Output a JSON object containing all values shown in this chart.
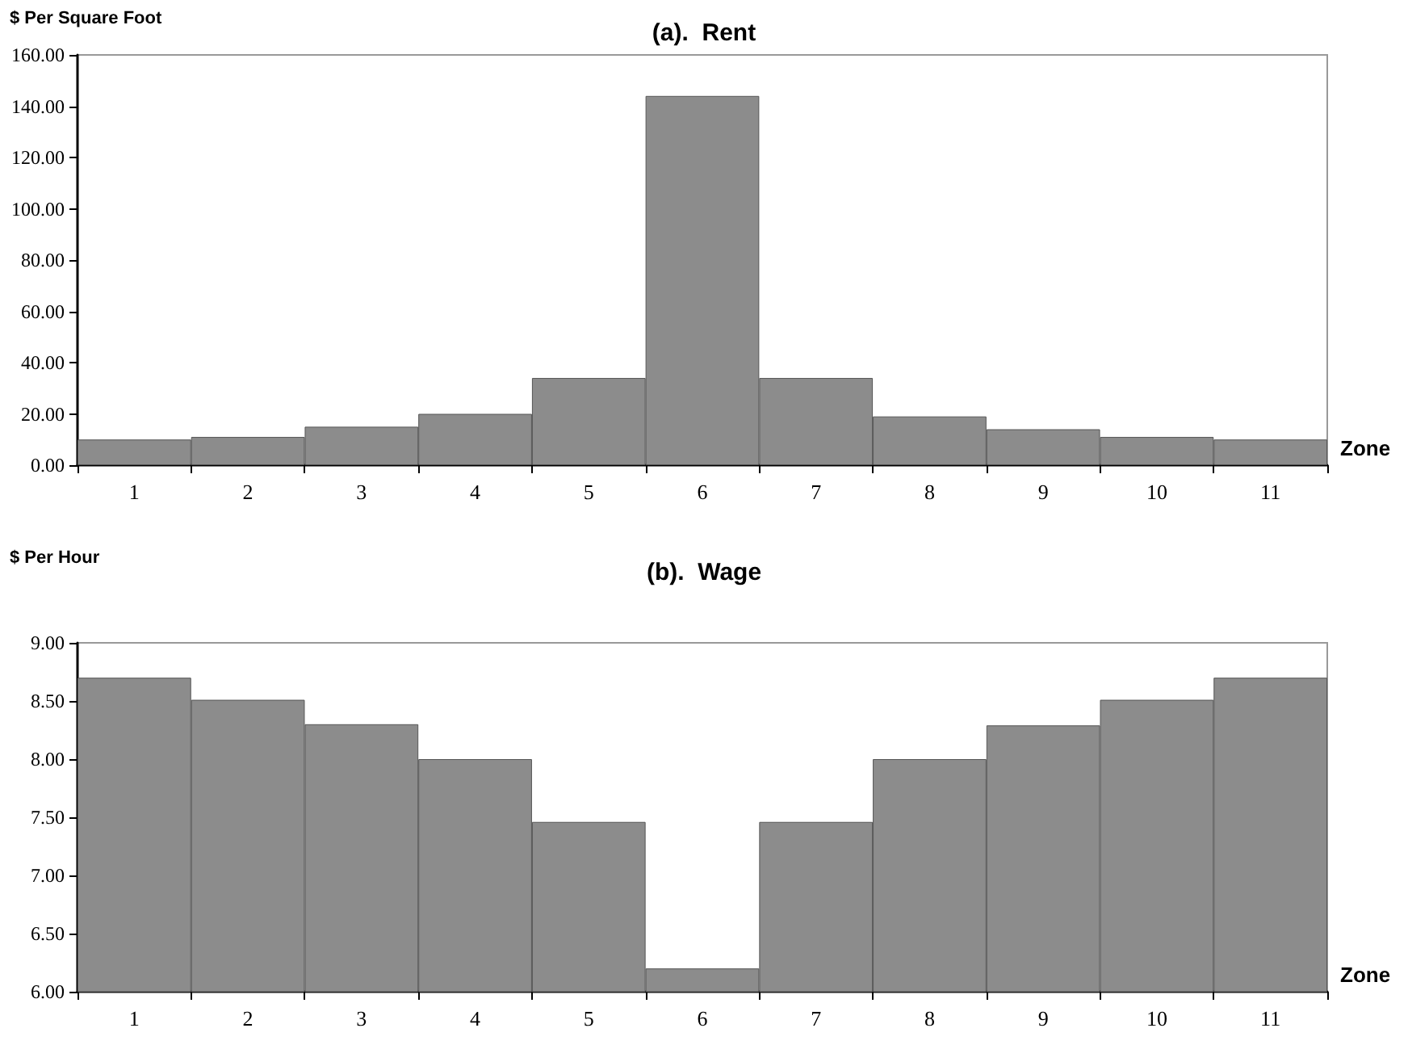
{
  "chart_data": [
    {
      "type": "bar",
      "title": "(a).  Rent",
      "ylabel": "$ Per Square Foot",
      "xlabel": "Zone",
      "categories": [
        "1",
        "2",
        "3",
        "4",
        "5",
        "6",
        "7",
        "8",
        "9",
        "10",
        "11"
      ],
      "values": [
        10,
        11,
        15,
        20,
        34,
        144,
        34,
        19,
        14,
        11,
        10
      ],
      "color": "#8c8c8c",
      "ylim": [
        0,
        160
      ],
      "yticks": [
        {
          "value": 0,
          "label": "0.00"
        },
        {
          "value": 20,
          "label": "20.00"
        },
        {
          "value": 40,
          "label": "40.00"
        },
        {
          "value": 60,
          "label": "60.00"
        },
        {
          "value": 80,
          "label": "80.00"
        },
        {
          "value": 100,
          "label": "100.00"
        },
        {
          "value": 120,
          "label": "120.00"
        },
        {
          "value": 140,
          "label": "140.00"
        },
        {
          "value": 160,
          "label": "160.00"
        }
      ]
    },
    {
      "type": "bar",
      "title": "(b).  Wage",
      "ylabel": "$ Per Hour",
      "xlabel": "Zone",
      "categories": [
        "1",
        "2",
        "3",
        "4",
        "5",
        "6",
        "7",
        "8",
        "9",
        "10",
        "11"
      ],
      "values": [
        8.7,
        8.51,
        8.3,
        8.0,
        7.46,
        6.2,
        7.46,
        8.0,
        8.29,
        8.51,
        8.7
      ],
      "color": "#8c8c8c",
      "ylim": [
        6,
        9
      ],
      "yticks": [
        {
          "value": 6,
          "label": "6.00"
        },
        {
          "value": 6.5,
          "label": "6.50"
        },
        {
          "value": 7,
          "label": "7.00"
        },
        {
          "value": 7.5,
          "label": "7.50"
        },
        {
          "value": 8,
          "label": "8.00"
        },
        {
          "value": 8.5,
          "label": "8.50"
        },
        {
          "value": 9,
          "label": "9.00"
        }
      ]
    }
  ]
}
